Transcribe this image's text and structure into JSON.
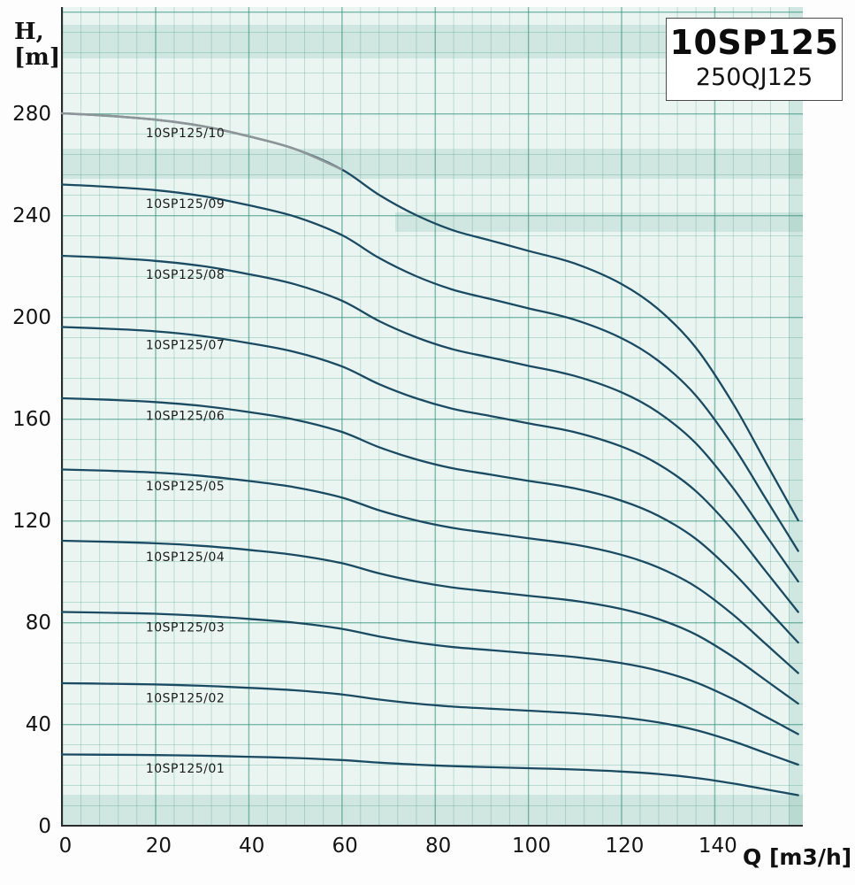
{
  "title_box": {
    "model": "10SP125",
    "series_code": "250QJ125"
  },
  "chart_data": {
    "type": "line",
    "title": "10SP125",
    "subtitle": "250QJ125",
    "xlabel": "Q [m3/h]",
    "ylabel_lines": [
      "H,",
      "[m]"
    ],
    "xlim": [
      0,
      158
    ],
    "ylim": [
      0,
      280
    ],
    "grid": true,
    "legend_position": "none",
    "line_color": "#1b4a63",
    "grid_color": "#9fd4c8",
    "x_ticks": [
      0,
      20,
      40,
      60,
      80,
      100,
      120,
      140
    ],
    "y_ticks": [
      0,
      40,
      80,
      120,
      160,
      200,
      240,
      280
    ],
    "x": [
      0,
      10,
      20,
      30,
      40,
      50,
      60,
      68,
      76,
      84,
      92,
      100,
      110,
      120,
      128,
      136,
      144,
      151,
      158
    ],
    "series": [
      {
        "name": "10SP125/10",
        "label": "10SP125/10",
        "values": [
          280,
          279,
          277.5,
          275,
          271,
          266,
          258,
          248,
          240,
          234,
          230,
          226,
          221,
          213,
          203,
          188,
          166,
          143,
          120
        ]
      },
      {
        "name": "10SP125/09",
        "label": "10SP125/09",
        "values": [
          252,
          251.1,
          249.8,
          247.5,
          243.9,
          239.4,
          232.2,
          223.2,
          216,
          210.6,
          207,
          203.4,
          198.9,
          191.7,
          182.7,
          169.2,
          149.4,
          128.7,
          108
        ]
      },
      {
        "name": "10SP125/08",
        "label": "10SP125/08",
        "values": [
          224,
          223.2,
          222,
          220,
          216.8,
          212.8,
          206.4,
          198.4,
          192,
          187.2,
          184,
          180.8,
          176.8,
          170.4,
          162.4,
          150.4,
          132.8,
          114.4,
          96
        ]
      },
      {
        "name": "10SP125/07",
        "label": "10SP125/07",
        "values": [
          196,
          195.3,
          194.3,
          192.5,
          189.7,
          186.2,
          180.6,
          173.6,
          168,
          163.8,
          161,
          158.2,
          154.7,
          149.1,
          142.1,
          131.6,
          116.2,
          100.1,
          84
        ]
      },
      {
        "name": "10SP125/06",
        "label": "10SP125/06",
        "values": [
          168,
          167.4,
          166.5,
          165,
          162.6,
          159.6,
          154.8,
          148.8,
          144,
          140.4,
          138,
          135.6,
          132.6,
          127.8,
          121.8,
          112.8,
          99.6,
          85.8,
          72
        ]
      },
      {
        "name": "10SP125/05",
        "label": "10SP125/05",
        "values": [
          140,
          139.5,
          138.8,
          137.5,
          135.5,
          133,
          129,
          124,
          120,
          117,
          115,
          113,
          110.5,
          106.5,
          101.5,
          94,
          83,
          71.5,
          60
        ]
      },
      {
        "name": "10SP125/04",
        "label": "10SP125/04",
        "values": [
          112,
          111.6,
          111,
          110,
          108.4,
          106.4,
          103.2,
          99.2,
          96,
          93.6,
          92,
          90.4,
          88.4,
          85.2,
          81.2,
          75.2,
          66.4,
          57.2,
          48
        ]
      },
      {
        "name": "10SP125/03",
        "label": "10SP125/03",
        "values": [
          84,
          83.7,
          83.3,
          82.5,
          81.3,
          79.8,
          77.4,
          74.4,
          72,
          70.2,
          69,
          67.8,
          66.3,
          63.9,
          60.9,
          56.4,
          49.8,
          42.9,
          36
        ]
      },
      {
        "name": "10SP125/02",
        "label": "10SP125/02",
        "values": [
          56,
          55.8,
          55.5,
          55,
          54.2,
          53.2,
          51.6,
          49.6,
          48,
          46.8,
          46,
          45.2,
          44.2,
          42.6,
          40.6,
          37.6,
          33.2,
          28.6,
          24
        ]
      },
      {
        "name": "10SP125/01",
        "label": "10SP125/01",
        "values": [
          28,
          27.9,
          27.75,
          27.5,
          27.1,
          26.6,
          25.8,
          24.8,
          24,
          23.4,
          23,
          22.6,
          22.1,
          21.3,
          20.3,
          18.8,
          16.6,
          14.3,
          12
        ]
      }
    ],
    "gray_overlay": {
      "series": "10SP125/10",
      "until_x": 64,
      "color": "#8e9598"
    }
  }
}
